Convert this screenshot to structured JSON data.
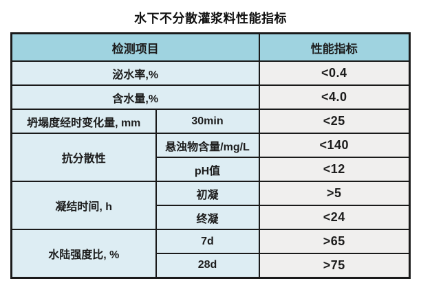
{
  "title": "水下不分散灌浆料性能指标",
  "table": {
    "header": {
      "item_label": "检测项目",
      "value_label": "性能指标"
    },
    "rows": [
      {
        "cells": [
          {
            "text": "泌水率,%",
            "colspan": 2
          },
          {
            "text": "<0.4"
          }
        ]
      },
      {
        "cells": [
          {
            "text": "含水量,%",
            "colspan": 2
          },
          {
            "text": "<4.0"
          }
        ]
      },
      {
        "cells": [
          {
            "text": "坍塌度经时变化量, mm"
          },
          {
            "text": "30min"
          },
          {
            "text": "<25"
          }
        ]
      },
      {
        "cells": [
          {
            "text": "抗分散性",
            "rowspan": 2
          },
          {
            "text": "悬浊物含量/mg/L"
          },
          {
            "text": "<140"
          }
        ]
      },
      {
        "cells": [
          {
            "text": "pH值"
          },
          {
            "text": "<12"
          }
        ]
      },
      {
        "cells": [
          {
            "text": "凝结时间, h",
            "rowspan": 2
          },
          {
            "text": "初凝"
          },
          {
            "text": ">5"
          }
        ]
      },
      {
        "cells": [
          {
            "text": "终凝"
          },
          {
            "text": "<24"
          }
        ]
      },
      {
        "cells": [
          {
            "text": "水陆强度比, %",
            "rowspan": 2
          },
          {
            "text": "7d"
          },
          {
            "text": ">65"
          }
        ]
      },
      {
        "cells": [
          {
            "text": "28d"
          },
          {
            "text": ">75"
          }
        ]
      }
    ]
  },
  "colors": {
    "header_bg": "#9fd3e0",
    "item_bg": "#ddedf3",
    "value_bg": "#f0efee",
    "border": "#1a1a1a",
    "text": "#1c1c1c"
  }
}
